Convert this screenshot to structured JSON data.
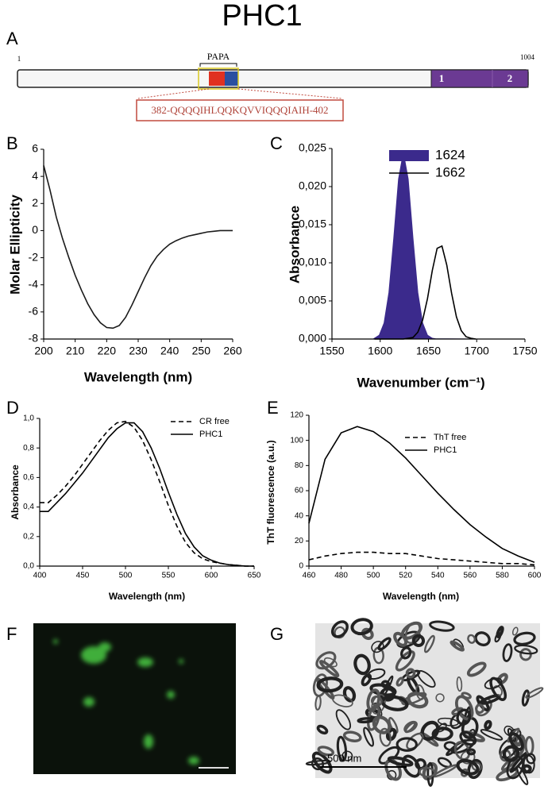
{
  "title": "PHC1",
  "panel_labels": [
    "A",
    "B",
    "C",
    "D",
    "E",
    "F",
    "G"
  ],
  "domain_diagram": {
    "start": "1",
    "end": "1004",
    "region_label": "PAPA",
    "domains": [
      "1",
      "2"
    ],
    "sequence": "382-QQQQIHLQQKQVVIQQQIAIH-402"
  },
  "micrograph_scale": "500 nm",
  "chart_data": [
    {
      "type": "line",
      "xlabel": "Wavelength (nm)",
      "ylabel": "Molar Ellipticity",
      "x": [
        200,
        202,
        204,
        206,
        208,
        210,
        212,
        214,
        216,
        218,
        220,
        222,
        224,
        226,
        228,
        230,
        232,
        234,
        236,
        238,
        240,
        242,
        244,
        246,
        248,
        250,
        252,
        254,
        256,
        258,
        260
      ],
      "series": [
        {
          "color": "#1a1a1a",
          "style": "solid",
          "values": [
            4.8,
            3.0,
            1.0,
            -0.6,
            -2.0,
            -3.3,
            -4.4,
            -5.4,
            -6.2,
            -6.8,
            -7.15,
            -7.2,
            -7.0,
            -6.4,
            -5.5,
            -4.5,
            -3.5,
            -2.6,
            -1.9,
            -1.4,
            -1.0,
            -0.75,
            -0.55,
            -0.4,
            -0.3,
            -0.2,
            -0.1,
            -0.05,
            0,
            0,
            0
          ]
        }
      ],
      "xlim": [
        200,
        260
      ],
      "xticks": [
        200,
        210,
        220,
        230,
        240,
        250,
        260
      ],
      "ylim": [
        -8,
        6
      ],
      "yticks": [
        -8,
        -6,
        -4,
        -2,
        0,
        2,
        4,
        6
      ]
    },
    {
      "type": "line",
      "xlabel": "Wavenumber (cm⁻¹)",
      "ylabel": "Absorbance",
      "x": [
        1594,
        1599,
        1604,
        1609,
        1614,
        1619,
        1624,
        1629,
        1634,
        1639,
        1644,
        1649,
        1654,
        1659,
        1664,
        1669,
        1674,
        1679,
        1684,
        1689,
        1694,
        1699
      ],
      "series": [
        {
          "name": "1624",
          "color": "#3b2a8c",
          "style": "filled",
          "values": [
            0.0001,
            0.0005,
            0.0021,
            0.0061,
            0.0132,
            0.021,
            0.0245,
            0.021,
            0.0132,
            0.0061,
            0.0021,
            0.0005,
            0.0001,
            0,
            0,
            0,
            0,
            0,
            0,
            0,
            0,
            0
          ]
        },
        {
          "name": "1662",
          "color": "#000000",
          "style": "solid",
          "values": [
            0,
            0,
            0,
            0,
            0,
            0,
            0,
            0.0001,
            0.0002,
            0.0009,
            0.0025,
            0.0053,
            0.009,
            0.0119,
            0.0122,
            0.0097,
            0.006,
            0.0029,
            0.0011,
            0.0003,
            0.0001,
            0
          ]
        }
      ],
      "xlim": [
        1550,
        1750
      ],
      "xticks": [
        1550,
        1600,
        1650,
        1700,
        1750
      ],
      "ylim": [
        0,
        0.025
      ],
      "yticks": [
        {
          "value": 0,
          "label": "0,000"
        },
        {
          "value": 0.005,
          "label": "0,005"
        },
        {
          "value": 0.01,
          "label": "0,010"
        },
        {
          "value": 0.015,
          "label": "0,015"
        },
        {
          "value": 0.02,
          "label": "0,020"
        },
        {
          "value": 0.025,
          "label": "0,025"
        }
      ]
    },
    {
      "type": "line",
      "xlabel": "Wavelength (nm)",
      "ylabel": "Absorbance",
      "x": [
        400,
        410,
        420,
        430,
        440,
        450,
        460,
        470,
        480,
        490,
        500,
        510,
        520,
        530,
        540,
        550,
        560,
        570,
        580,
        590,
        600,
        610,
        620,
        630,
        640,
        650
      ],
      "series": [
        {
          "name": "CR free",
          "color": "#000000",
          "style": "dashed",
          "values": [
            0.43,
            0.43,
            0.48,
            0.54,
            0.61,
            0.69,
            0.77,
            0.85,
            0.92,
            0.97,
            0.98,
            0.94,
            0.85,
            0.72,
            0.57,
            0.41,
            0.27,
            0.16,
            0.09,
            0.05,
            0.03,
            0.02,
            0.01,
            0.005,
            0,
            0
          ]
        },
        {
          "name": "PHC1",
          "color": "#000000",
          "style": "solid",
          "values": [
            0.37,
            0.37,
            0.43,
            0.49,
            0.56,
            0.63,
            0.71,
            0.79,
            0.87,
            0.93,
            0.97,
            0.97,
            0.91,
            0.8,
            0.66,
            0.5,
            0.35,
            0.22,
            0.13,
            0.07,
            0.04,
            0.02,
            0.01,
            0.005,
            0,
            0
          ]
        }
      ],
      "xlim": [
        400,
        650
      ],
      "xticks": [
        400,
        450,
        500,
        550,
        600,
        650
      ],
      "ylim": [
        0,
        1
      ],
      "yticks": [
        {
          "value": 0,
          "label": "0,0"
        },
        {
          "value": 0.2,
          "label": "0,2"
        },
        {
          "value": 0.4,
          "label": "0,4"
        },
        {
          "value": 0.6,
          "label": "0,6"
        },
        {
          "value": 0.8,
          "label": "0,8"
        },
        {
          "value": 1,
          "label": "1,0"
        }
      ]
    },
    {
      "type": "line",
      "xlabel": "Wavelength (nm)",
      "ylabel": "ThT fluorescence (a.u.)",
      "x": [
        460,
        470,
        480,
        490,
        500,
        510,
        520,
        530,
        540,
        550,
        560,
        570,
        580,
        590,
        600
      ],
      "series": [
        {
          "name": "ThT free",
          "color": "#000000",
          "style": "dashed",
          "values": [
            5,
            8,
            10,
            11,
            11,
            10,
            10,
            8,
            6,
            5,
            4,
            3,
            2,
            2,
            1
          ]
        },
        {
          "name": "PHC1",
          "color": "#000000",
          "style": "solid",
          "values": [
            34,
            85,
            106,
            111,
            107,
            98,
            86,
            72,
            58,
            45,
            33,
            23,
            14,
            8,
            3
          ]
        }
      ],
      "xlim": [
        460,
        600
      ],
      "xticks": [
        460,
        480,
        500,
        520,
        540,
        560,
        580,
        600
      ],
      "ylim": [
        0,
        120
      ],
      "yticks": [
        0,
        20,
        40,
        60,
        80,
        100,
        120
      ]
    }
  ]
}
